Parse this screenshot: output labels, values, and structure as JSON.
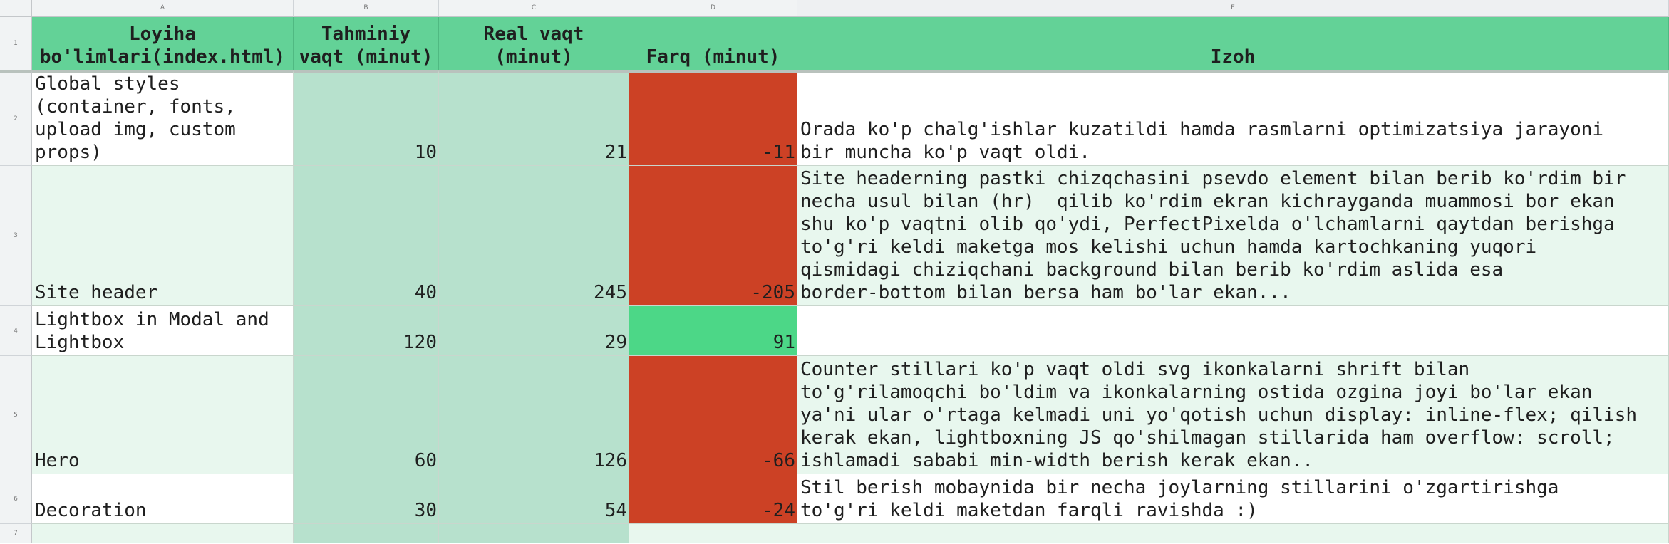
{
  "column_letters": [
    "A",
    "B",
    "C",
    "D",
    "E"
  ],
  "row_numbers": [
    "1",
    "2",
    "3",
    "4",
    "5",
    "6",
    "7"
  ],
  "header": {
    "a": "Loyiha\nbo'limlari(index.html)",
    "b": "Tahminiy\nvaqt (minut)",
    "c": "Real vaqt\n(minut)",
    "d": "Farq (minut)",
    "e": "Izoh"
  },
  "rows": [
    {
      "section": "Global styles\n(container, fonts,\nupload img, custom\nprops)",
      "estimated": "10",
      "actual": "21",
      "diff": "-11",
      "note": "Orada ko'p chalg'ishlar kuzatildi hamda rasmlarni optimizatsiya jarayoni\nbir muncha ko'p vaqt oldi."
    },
    {
      "section": "Site header",
      "estimated": "40",
      "actual": "245",
      "diff": "-205",
      "note": "Site headerning pastki chizqchasini psevdo element bilan berib ko'rdim bir\nnecha usul bilan (hr)  qilib ko'rdim ekran kichrayganda muammosi bor ekan\nshu ko'p vaqtni olib qo'ydi, PerfectPixelda o'lchamlarni qaytdan berishga\nto'g'ri keldi maketga mos kelishi uchun hamda kartochkaning yuqori\nqismidagi chiziqchani background bilan berib ko'rdim aslida esa\nborder-bottom bilan bersa ham bo'lar ekan..."
    },
    {
      "section": "Lightbox in Modal and\nLightbox",
      "estimated": "120",
      "actual": "29",
      "diff": "91",
      "note": ""
    },
    {
      "section": "Hero",
      "estimated": "60",
      "actual": "126",
      "diff": "-66",
      "note": "Counter stillari ko'p vaqt oldi svg ikonkalarni shrift bilan\nto'g'rilamoqchi bo'ldim va ikonkalarning ostida ozgina joyi bo'lar ekan\nya'ni ular o'rtaga kelmadi uni yo'qotish uchun display: inline-flex; qilish\nkerak ekan, lightboxning JS qo'shilmagan stillarida ham overflow: scroll;\nishlamadi sababi min-width berish kerak ekan.."
    },
    {
      "section": "Decoration",
      "estimated": "30",
      "actual": "54",
      "diff": "-24",
      "note": "Stil berish mobaynida bir necha joylarning stillarini o'zgartirishga\nto'g'ri keldi maketdan farqli ravishda :)"
    }
  ],
  "colors": {
    "header_green": "#63d297",
    "estimate_fill": "#b7e1cd",
    "row_alt_fill": "#e8f7ee",
    "over_budget_red": "#cc4125",
    "under_budget_green": "#4cd787"
  }
}
